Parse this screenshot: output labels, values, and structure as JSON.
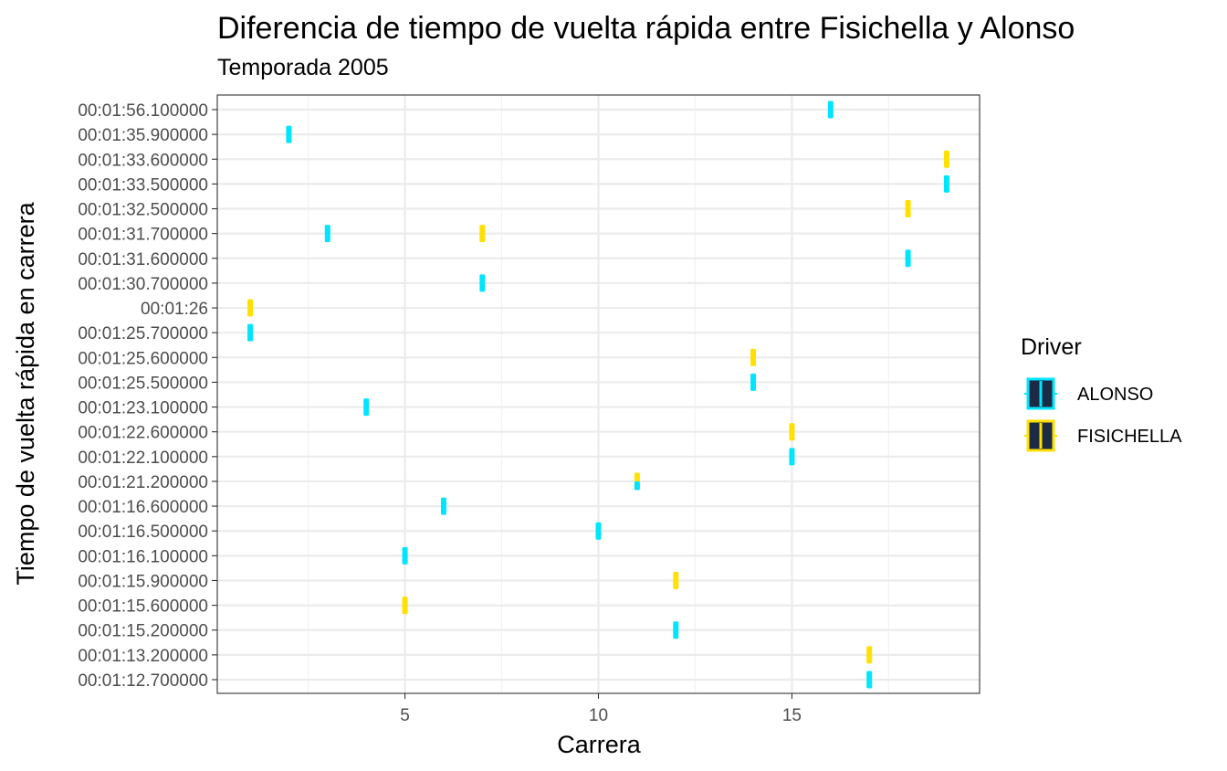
{
  "chart_data": {
    "type": "scatter",
    "title": "Diferencia de tiempo de vuelta rápida entre Fisichella y Alonso",
    "subtitle": "Temporada 2005",
    "xlabel": "Carrera",
    "ylabel": "Tiempo de vuelta rápida en carrera",
    "xlim": [
      0.15,
      19.85
    ],
    "x_ticks": [
      5,
      10,
      15
    ],
    "y_categories": [
      "00:01:12.700000",
      "00:01:13.200000",
      "00:01:15.200000",
      "00:01:15.600000",
      "00:01:15.900000",
      "00:01:16.100000",
      "00:01:16.500000",
      "00:01:16.600000",
      "00:01:21.200000",
      "00:01:22.100000",
      "00:01:22.600000",
      "00:01:23.100000",
      "00:01:25.500000",
      "00:01:25.600000",
      "00:01:25.700000",
      "00:01:26",
      "00:01:30.700000",
      "00:01:31.600000",
      "00:01:31.700000",
      "00:01:32.500000",
      "00:01:33.500000",
      "00:01:33.600000",
      "00:01:35.900000",
      "00:01:56.100000"
    ],
    "legend": {
      "title": "Driver",
      "position": "right"
    },
    "grid": true,
    "series": [
      {
        "name": "ALONSO",
        "color": "#00E5FF",
        "points": [
          {
            "x": 1,
            "y": "00:01:25.700000"
          },
          {
            "x": 2,
            "y": "00:01:35.900000"
          },
          {
            "x": 3,
            "y": "00:01:31.700000"
          },
          {
            "x": 4,
            "y": "00:01:23.100000"
          },
          {
            "x": 5,
            "y": "00:01:16.100000"
          },
          {
            "x": 6,
            "y": "00:01:16.600000"
          },
          {
            "x": 7,
            "y": "00:01:30.700000"
          },
          {
            "x": 10,
            "y": "00:01:16.500000"
          },
          {
            "x": 11,
            "y": "00:01:21.200000"
          },
          {
            "x": 12,
            "y": "00:01:15.200000"
          },
          {
            "x": 14,
            "y": "00:01:25.500000"
          },
          {
            "x": 15,
            "y": "00:01:22.100000"
          },
          {
            "x": 16,
            "y": "00:01:56.100000"
          },
          {
            "x": 17,
            "y": "00:01:12.700000"
          },
          {
            "x": 18,
            "y": "00:01:31.600000"
          },
          {
            "x": 19,
            "y": "00:01:33.500000"
          }
        ]
      },
      {
        "name": "FISICHELLA",
        "color": "#FFE000",
        "points": [
          {
            "x": 1,
            "y": "00:01:26"
          },
          {
            "x": 5,
            "y": "00:01:15.600000"
          },
          {
            "x": 7,
            "y": "00:01:31.700000"
          },
          {
            "x": 11,
            "y": "00:01:21.200000"
          },
          {
            "x": 12,
            "y": "00:01:15.900000"
          },
          {
            "x": 14,
            "y": "00:01:25.600000"
          },
          {
            "x": 15,
            "y": "00:01:22.600000"
          },
          {
            "x": 17,
            "y": "00:01:13.200000"
          },
          {
            "x": 18,
            "y": "00:01:32.500000"
          },
          {
            "x": 19,
            "y": "00:01:33.600000"
          }
        ]
      }
    ],
    "legend_key_fill": "#1C2B45"
  }
}
